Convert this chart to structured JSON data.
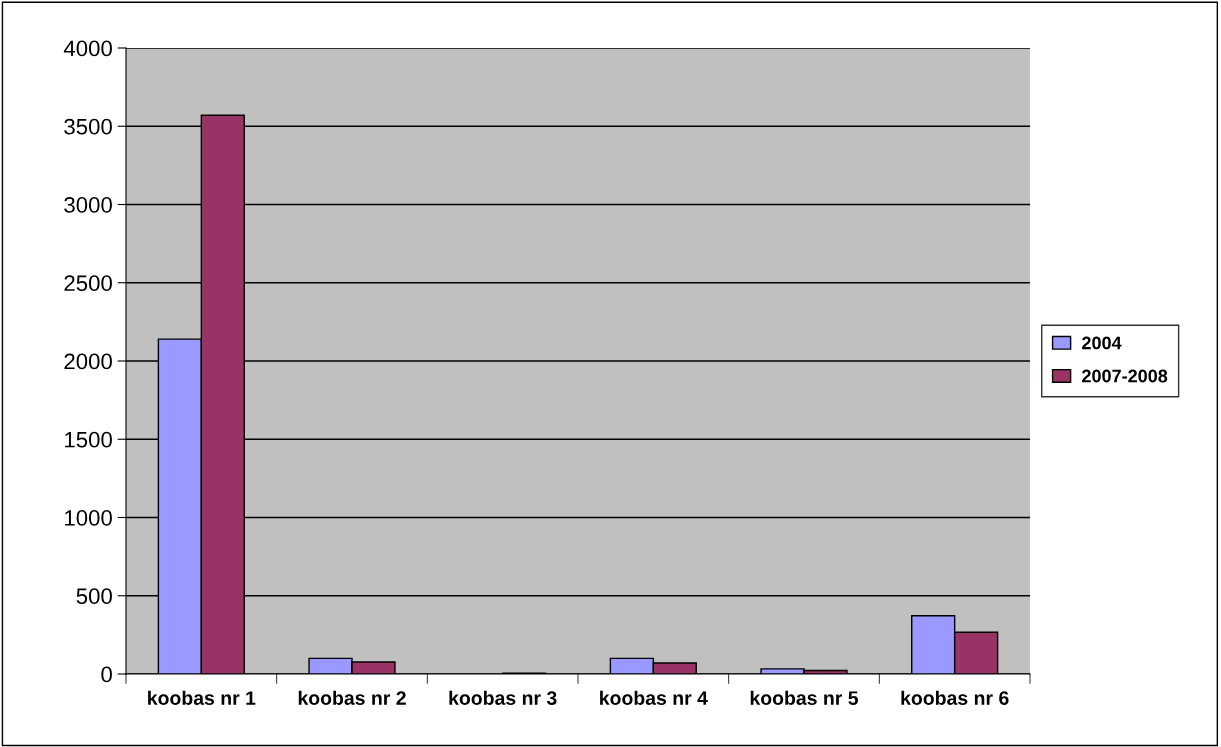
{
  "chart_data": {
    "type": "bar",
    "categories": [
      "koobas nr 1",
      "koobas nr 2",
      "koobas nr 3",
      "koobas nr 4",
      "koobas nr 5",
      "koobas nr 6"
    ],
    "series": [
      {
        "name": "2004",
        "color": "#9999ff",
        "values": [
          2140,
          100,
          0,
          100,
          33,
          372
        ]
      },
      {
        "name": "2007-2008",
        "color": "#993366",
        "values": [
          3570,
          77,
          5,
          70,
          22,
          267
        ]
      }
    ],
    "ylim": [
      0,
      4000
    ],
    "yticks": [
      0,
      500,
      1000,
      1500,
      2000,
      2500,
      3000,
      3500,
      4000
    ],
    "grid": "y",
    "legend": "right"
  }
}
